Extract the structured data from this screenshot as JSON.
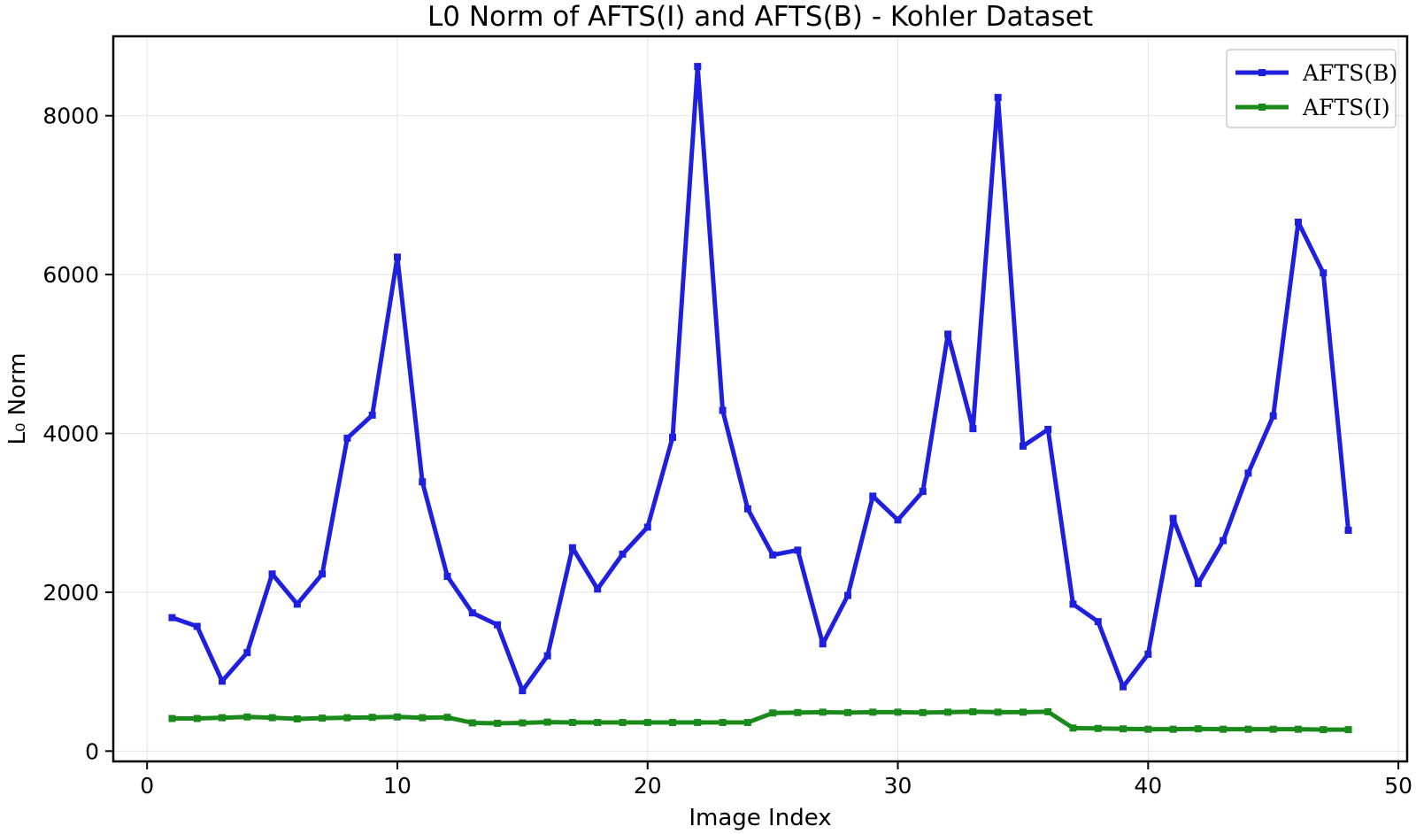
{
  "chart_data": {
    "type": "line",
    "title": "L0 Norm of AFTS(I) and AFTS(B) - Kohler Dataset",
    "xlabel": "Image Index",
    "ylabel": "L₀ Norm",
    "xlim": [
      -1.35,
      50.35
    ],
    "ylim": [
      -130,
      9000
    ],
    "xticks": [
      0,
      10,
      20,
      30,
      40,
      50
    ],
    "yticks": [
      0,
      2000,
      4000,
      6000,
      8000
    ],
    "grid": true,
    "legend_position": "top-right",
    "x": [
      1,
      2,
      3,
      4,
      5,
      6,
      7,
      8,
      9,
      10,
      11,
      12,
      13,
      14,
      15,
      16,
      17,
      18,
      19,
      20,
      21,
      22,
      23,
      24,
      25,
      26,
      27,
      28,
      29,
      30,
      31,
      32,
      33,
      34,
      35,
      36,
      37,
      38,
      39,
      40,
      41,
      42,
      43,
      44,
      45,
      46,
      47,
      48
    ],
    "series": [
      {
        "name": "AFTS(B)",
        "color": "#1f1fe0",
        "values": [
          1680,
          1570,
          880,
          1240,
          2230,
          1850,
          2230,
          3940,
          4230,
          6220,
          3390,
          2200,
          1740,
          1590,
          760,
          1200,
          2560,
          2040,
          2480,
          2820,
          3950,
          8620,
          4290,
          3050,
          2470,
          2530,
          1350,
          1960,
          3210,
          2910,
          3270,
          5250,
          4060,
          8230,
          3840,
          4050,
          1850,
          1630,
          810,
          1220,
          2930,
          2110,
          2650,
          3500,
          4220,
          6660,
          6020,
          2780
        ]
      },
      {
        "name": "AFTS(I)",
        "color": "#1a8a1a",
        "values": [
          410,
          410,
          420,
          430,
          420,
          405,
          415,
          420,
          425,
          430,
          420,
          425,
          355,
          350,
          355,
          365,
          360,
          360,
          360,
          360,
          360,
          360,
          360,
          360,
          480,
          485,
          490,
          485,
          490,
          490,
          485,
          490,
          495,
          490,
          490,
          495,
          290,
          285,
          280,
          275,
          275,
          280,
          275,
          275,
          275,
          275,
          270,
          270
        ]
      }
    ]
  }
}
